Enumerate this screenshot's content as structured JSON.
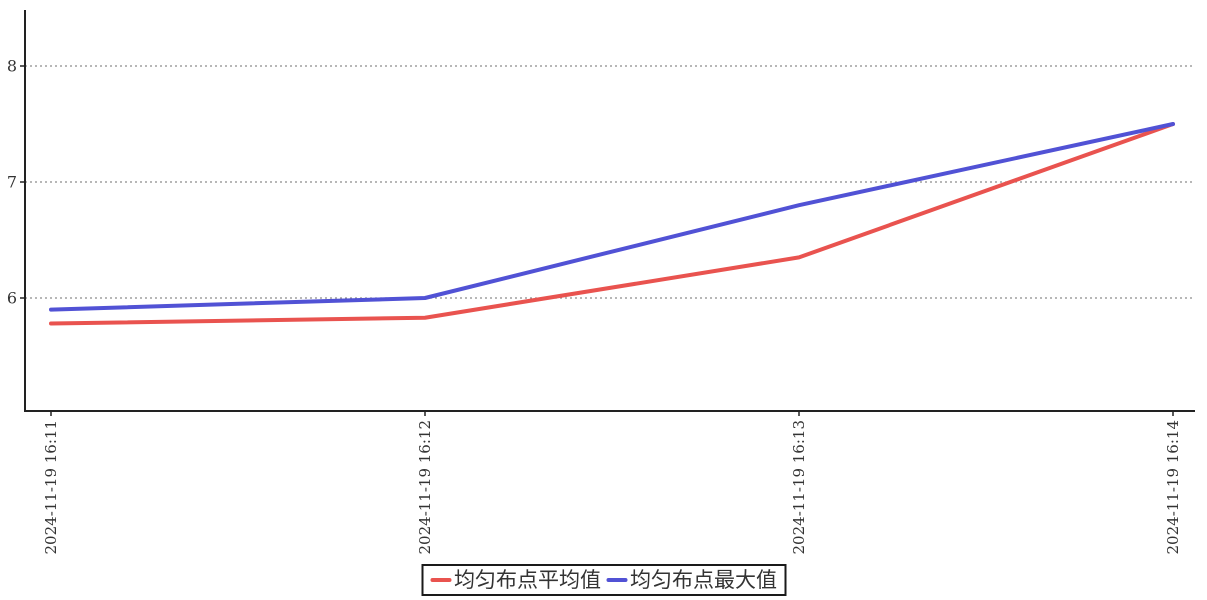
{
  "chart_data": {
    "type": "line",
    "title": "",
    "xlabel": "",
    "ylabel": "",
    "x": [
      "2024-11-19 16:11",
      "2024-11-19 16:12",
      "2024-11-19 16:13",
      "2024-11-19 16:14"
    ],
    "y_ticks": [
      6,
      7,
      8
    ],
    "ylim": [
      5.0,
      8.5
    ],
    "grid": "horizontal-dotted",
    "legend_position": "bottom-center",
    "series": [
      {
        "name": "均匀布点平均值",
        "color": "#e9534f",
        "values": [
          5.78,
          5.83,
          6.35,
          7.5
        ]
      },
      {
        "name": "均匀布点最大值",
        "color": "#5152d5",
        "values": [
          5.9,
          6.0,
          6.8,
          7.5
        ]
      }
    ],
    "colors": {
      "axis": "#222222",
      "gridline": "#8c8c8c",
      "label_text": "#333333",
      "legend_border": "#1a1a1a",
      "background": "#ffffff"
    }
  }
}
